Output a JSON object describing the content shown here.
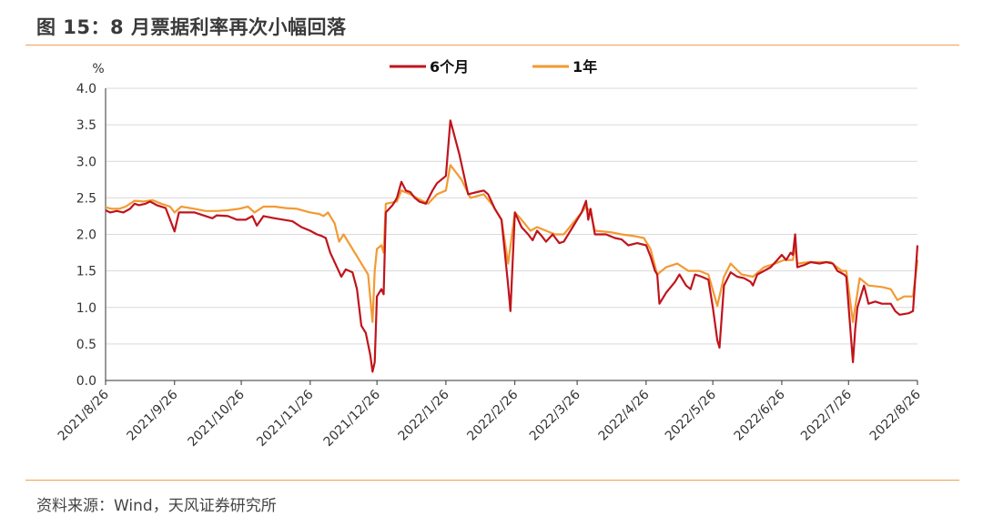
{
  "title": "图 15：8 月票据利率再次小幅回落",
  "source": "资料来源：Wind，天风证券研究所",
  "colors": {
    "series_6m": "#c0141c",
    "series_1y": "#f39a33",
    "grid": "#d9d9d9",
    "rule": "#f0a050"
  },
  "chart_data": {
    "type": "line",
    "title": "",
    "xlabel": "",
    "ylabel": "%",
    "ylim": [
      0,
      4.0
    ],
    "yticks": [
      "0.0",
      "0.5",
      "1.0",
      "1.5",
      "2.0",
      "2.5",
      "3.0",
      "3.5",
      "4.0"
    ],
    "xlim": [
      "2021-08-26",
      "2022-08-26"
    ],
    "xticks": [
      "2021/8/26",
      "2021/9/26",
      "2021/10/26",
      "2021/11/26",
      "2021/12/26",
      "2022/1/26",
      "2022/2/26",
      "2022/3/26",
      "2022/4/26",
      "2022/5/26",
      "2022/6/26",
      "2022/7/26",
      "2022/8/26"
    ],
    "grid": true,
    "legend_position": "top-center",
    "series": [
      {
        "name": "6个月",
        "color": "#c0141c",
        "points": [
          [
            "2021-08-26",
            2.33
          ],
          [
            "2021-08-28",
            2.3
          ],
          [
            "2021-08-31",
            2.32
          ],
          [
            "2021-09-03",
            2.3
          ],
          [
            "2021-09-06",
            2.35
          ],
          [
            "2021-09-08",
            2.42
          ],
          [
            "2021-09-10",
            2.4
          ],
          [
            "2021-09-13",
            2.42
          ],
          [
            "2021-09-15",
            2.45
          ],
          [
            "2021-09-18",
            2.4
          ],
          [
            "2021-09-22",
            2.36
          ],
          [
            "2021-09-24",
            2.2
          ],
          [
            "2021-09-26",
            2.04
          ],
          [
            "2021-09-28",
            2.3
          ],
          [
            "2021-10-05",
            2.3
          ],
          [
            "2021-10-10",
            2.25
          ],
          [
            "2021-10-13",
            2.22
          ],
          [
            "2021-10-15",
            2.26
          ],
          [
            "2021-10-20",
            2.25
          ],
          [
            "2021-10-24",
            2.2
          ],
          [
            "2021-10-28",
            2.2
          ],
          [
            "2021-10-31",
            2.25
          ],
          [
            "2021-11-02",
            2.12
          ],
          [
            "2021-11-05",
            2.25
          ],
          [
            "2021-11-10",
            2.22
          ],
          [
            "2021-11-14",
            2.2
          ],
          [
            "2021-11-18",
            2.18
          ],
          [
            "2021-11-22",
            2.1
          ],
          [
            "2021-11-26",
            2.05
          ],
          [
            "2021-11-29",
            2.0
          ],
          [
            "2021-12-01",
            1.98
          ],
          [
            "2021-12-03",
            1.95
          ],
          [
            "2021-12-05",
            1.75
          ],
          [
            "2021-12-08",
            1.55
          ],
          [
            "2021-12-10",
            1.42
          ],
          [
            "2021-12-12",
            1.52
          ],
          [
            "2021-12-15",
            1.48
          ],
          [
            "2021-12-17",
            1.25
          ],
          [
            "2021-12-19",
            0.75
          ],
          [
            "2021-12-21",
            0.65
          ],
          [
            "2021-12-23",
            0.35
          ],
          [
            "2021-12-24",
            0.12
          ],
          [
            "2021-12-25",
            0.25
          ],
          [
            "2021-12-26",
            1.15
          ],
          [
            "2021-12-28",
            1.25
          ],
          [
            "2021-12-29",
            1.18
          ],
          [
            "2021-12-30",
            2.3
          ],
          [
            "2022-01-02",
            2.4
          ],
          [
            "2022-01-04",
            2.5
          ],
          [
            "2022-01-06",
            2.72
          ],
          [
            "2022-01-08",
            2.6
          ],
          [
            "2022-01-10",
            2.58
          ],
          [
            "2022-01-12",
            2.5
          ],
          [
            "2022-01-14",
            2.45
          ],
          [
            "2022-01-17",
            2.42
          ],
          [
            "2022-01-20",
            2.6
          ],
          [
            "2022-01-22",
            2.7
          ],
          [
            "2022-01-24",
            2.75
          ],
          [
            "2022-01-26",
            2.8
          ],
          [
            "2022-01-28",
            3.56
          ],
          [
            "2022-02-01",
            3.1
          ],
          [
            "2022-02-05",
            2.55
          ],
          [
            "2022-02-09",
            2.58
          ],
          [
            "2022-02-12",
            2.6
          ],
          [
            "2022-02-14",
            2.55
          ],
          [
            "2022-02-17",
            2.35
          ],
          [
            "2022-02-20",
            2.2
          ],
          [
            "2022-02-23",
            1.3
          ],
          [
            "2022-02-24",
            0.95
          ],
          [
            "2022-02-26",
            2.3
          ],
          [
            "2022-03-01",
            2.1
          ],
          [
            "2022-03-04",
            2.0
          ],
          [
            "2022-03-06",
            1.92
          ],
          [
            "2022-03-08",
            2.05
          ],
          [
            "2022-03-10",
            1.98
          ],
          [
            "2022-03-12",
            1.9
          ],
          [
            "2022-03-15",
            2.0
          ],
          [
            "2022-03-18",
            1.88
          ],
          [
            "2022-03-20",
            1.9
          ],
          [
            "2022-03-24",
            2.1
          ],
          [
            "2022-03-26",
            2.2
          ],
          [
            "2022-03-28",
            2.3
          ],
          [
            "2022-03-30",
            2.46
          ],
          [
            "2022-03-31",
            2.2
          ],
          [
            "2022-04-01",
            2.35
          ],
          [
            "2022-04-03",
            2.0
          ],
          [
            "2022-04-08",
            2.0
          ],
          [
            "2022-04-12",
            1.95
          ],
          [
            "2022-04-15",
            1.93
          ],
          [
            "2022-04-18",
            1.85
          ],
          [
            "2022-04-22",
            1.88
          ],
          [
            "2022-04-26",
            1.85
          ],
          [
            "2022-04-28",
            1.7
          ],
          [
            "2022-04-30",
            1.5
          ],
          [
            "2022-05-01",
            1.45
          ],
          [
            "2022-05-02",
            1.05
          ],
          [
            "2022-05-05",
            1.2
          ],
          [
            "2022-05-09",
            1.35
          ],
          [
            "2022-05-11",
            1.45
          ],
          [
            "2022-05-14",
            1.3
          ],
          [
            "2022-05-16",
            1.25
          ],
          [
            "2022-05-18",
            1.45
          ],
          [
            "2022-05-21",
            1.42
          ],
          [
            "2022-05-24",
            1.38
          ],
          [
            "2022-05-26",
            1.0
          ],
          [
            "2022-05-28",
            0.55
          ],
          [
            "2022-05-29",
            0.45
          ],
          [
            "2022-05-31",
            1.3
          ],
          [
            "2022-06-03",
            1.48
          ],
          [
            "2022-06-06",
            1.42
          ],
          [
            "2022-06-09",
            1.4
          ],
          [
            "2022-06-12",
            1.35
          ],
          [
            "2022-06-13",
            1.3
          ],
          [
            "2022-06-15",
            1.45
          ],
          [
            "2022-06-18",
            1.5
          ],
          [
            "2022-06-21",
            1.55
          ],
          [
            "2022-06-24",
            1.65
          ],
          [
            "2022-06-26",
            1.72
          ],
          [
            "2022-06-28",
            1.65
          ],
          [
            "2022-06-30",
            1.75
          ],
          [
            "2022-07-01",
            1.72
          ],
          [
            "2022-07-02",
            2.0
          ],
          [
            "2022-07-03",
            1.55
          ],
          [
            "2022-07-06",
            1.58
          ],
          [
            "2022-07-09",
            1.62
          ],
          [
            "2022-07-13",
            1.6
          ],
          [
            "2022-07-16",
            1.62
          ],
          [
            "2022-07-19",
            1.6
          ],
          [
            "2022-07-21",
            1.5
          ],
          [
            "2022-07-24",
            1.45
          ],
          [
            "2022-07-25",
            1.42
          ],
          [
            "2022-07-28",
            0.25
          ],
          [
            "2022-07-29",
            0.7
          ],
          [
            "2022-07-30",
            1.0
          ],
          [
            "2022-08-02",
            1.3
          ],
          [
            "2022-08-04",
            1.05
          ],
          [
            "2022-08-07",
            1.08
          ],
          [
            "2022-08-10",
            1.05
          ],
          [
            "2022-08-14",
            1.05
          ],
          [
            "2022-08-16",
            0.95
          ],
          [
            "2022-08-18",
            0.9
          ],
          [
            "2022-08-22",
            0.92
          ],
          [
            "2022-08-24",
            0.95
          ],
          [
            "2022-08-26",
            1.85
          ]
        ]
      },
      {
        "name": "1年",
        "color": "#f39a33",
        "points": [
          [
            "2021-08-26",
            2.37
          ],
          [
            "2021-08-29",
            2.35
          ],
          [
            "2021-09-01",
            2.35
          ],
          [
            "2021-09-04",
            2.38
          ],
          [
            "2021-09-08",
            2.46
          ],
          [
            "2021-09-12",
            2.45
          ],
          [
            "2021-09-16",
            2.47
          ],
          [
            "2021-09-20",
            2.42
          ],
          [
            "2021-09-24",
            2.38
          ],
          [
            "2021-09-26",
            2.3
          ],
          [
            "2021-09-29",
            2.38
          ],
          [
            "2021-10-05",
            2.35
          ],
          [
            "2021-10-10",
            2.32
          ],
          [
            "2021-10-15",
            2.32
          ],
          [
            "2021-10-20",
            2.33
          ],
          [
            "2021-10-25",
            2.35
          ],
          [
            "2021-10-29",
            2.38
          ],
          [
            "2021-11-01",
            2.3
          ],
          [
            "2021-11-05",
            2.38
          ],
          [
            "2021-11-10",
            2.38
          ],
          [
            "2021-11-15",
            2.36
          ],
          [
            "2021-11-20",
            2.35
          ],
          [
            "2021-11-26",
            2.3
          ],
          [
            "2021-11-30",
            2.28
          ],
          [
            "2021-12-02",
            2.25
          ],
          [
            "2021-12-04",
            2.3
          ],
          [
            "2021-12-07",
            2.15
          ],
          [
            "2021-12-09",
            1.9
          ],
          [
            "2021-12-11",
            2.0
          ],
          [
            "2021-12-14",
            1.85
          ],
          [
            "2021-12-17",
            1.7
          ],
          [
            "2021-12-20",
            1.55
          ],
          [
            "2021-12-22",
            1.45
          ],
          [
            "2021-12-24",
            0.8
          ],
          [
            "2021-12-25",
            1.5
          ],
          [
            "2021-12-26",
            1.8
          ],
          [
            "2021-12-28",
            1.85
          ],
          [
            "2021-12-29",
            1.75
          ],
          [
            "2021-12-30",
            2.42
          ],
          [
            "2022-01-04",
            2.45
          ],
          [
            "2022-01-06",
            2.6
          ],
          [
            "2022-01-10",
            2.55
          ],
          [
            "2022-01-14",
            2.48
          ],
          [
            "2022-01-18",
            2.42
          ],
          [
            "2022-01-22",
            2.55
          ],
          [
            "2022-01-26",
            2.6
          ],
          [
            "2022-01-28",
            2.95
          ],
          [
            "2022-02-02",
            2.75
          ],
          [
            "2022-02-06",
            2.5
          ],
          [
            "2022-02-12",
            2.55
          ],
          [
            "2022-02-16",
            2.4
          ],
          [
            "2022-02-20",
            2.2
          ],
          [
            "2022-02-23",
            1.6
          ],
          [
            "2022-02-26",
            2.3
          ],
          [
            "2022-03-01",
            2.2
          ],
          [
            "2022-03-05",
            2.05
          ],
          [
            "2022-03-08",
            2.1
          ],
          [
            "2022-03-12",
            2.05
          ],
          [
            "2022-03-16",
            2.0
          ],
          [
            "2022-03-20",
            2.0
          ],
          [
            "2022-03-24",
            2.15
          ],
          [
            "2022-03-28",
            2.3
          ],
          [
            "2022-03-30",
            2.38
          ],
          [
            "2022-04-01",
            2.3
          ],
          [
            "2022-04-03",
            2.05
          ],
          [
            "2022-04-10",
            2.03
          ],
          [
            "2022-04-15",
            2.0
          ],
          [
            "2022-04-20",
            1.98
          ],
          [
            "2022-04-25",
            1.95
          ],
          [
            "2022-04-28",
            1.8
          ],
          [
            "2022-05-01",
            1.45
          ],
          [
            "2022-05-05",
            1.55
          ],
          [
            "2022-05-10",
            1.6
          ],
          [
            "2022-05-15",
            1.5
          ],
          [
            "2022-05-20",
            1.5
          ],
          [
            "2022-05-24",
            1.45
          ],
          [
            "2022-05-28",
            1.02
          ],
          [
            "2022-05-31",
            1.42
          ],
          [
            "2022-06-03",
            1.6
          ],
          [
            "2022-06-08",
            1.45
          ],
          [
            "2022-06-13",
            1.42
          ],
          [
            "2022-06-18",
            1.55
          ],
          [
            "2022-06-23",
            1.6
          ],
          [
            "2022-06-27",
            1.65
          ],
          [
            "2022-07-01",
            1.65
          ],
          [
            "2022-07-02",
            1.85
          ],
          [
            "2022-07-03",
            1.6
          ],
          [
            "2022-07-08",
            1.62
          ],
          [
            "2022-07-13",
            1.62
          ],
          [
            "2022-07-18",
            1.62
          ],
          [
            "2022-07-23",
            1.5
          ],
          [
            "2022-07-25",
            1.5
          ],
          [
            "2022-07-28",
            0.8
          ],
          [
            "2022-07-31",
            1.4
          ],
          [
            "2022-08-04",
            1.3
          ],
          [
            "2022-08-10",
            1.28
          ],
          [
            "2022-08-14",
            1.25
          ],
          [
            "2022-08-17",
            1.1
          ],
          [
            "2022-08-20",
            1.15
          ],
          [
            "2022-08-24",
            1.15
          ],
          [
            "2022-08-26",
            1.65
          ]
        ]
      }
    ]
  }
}
